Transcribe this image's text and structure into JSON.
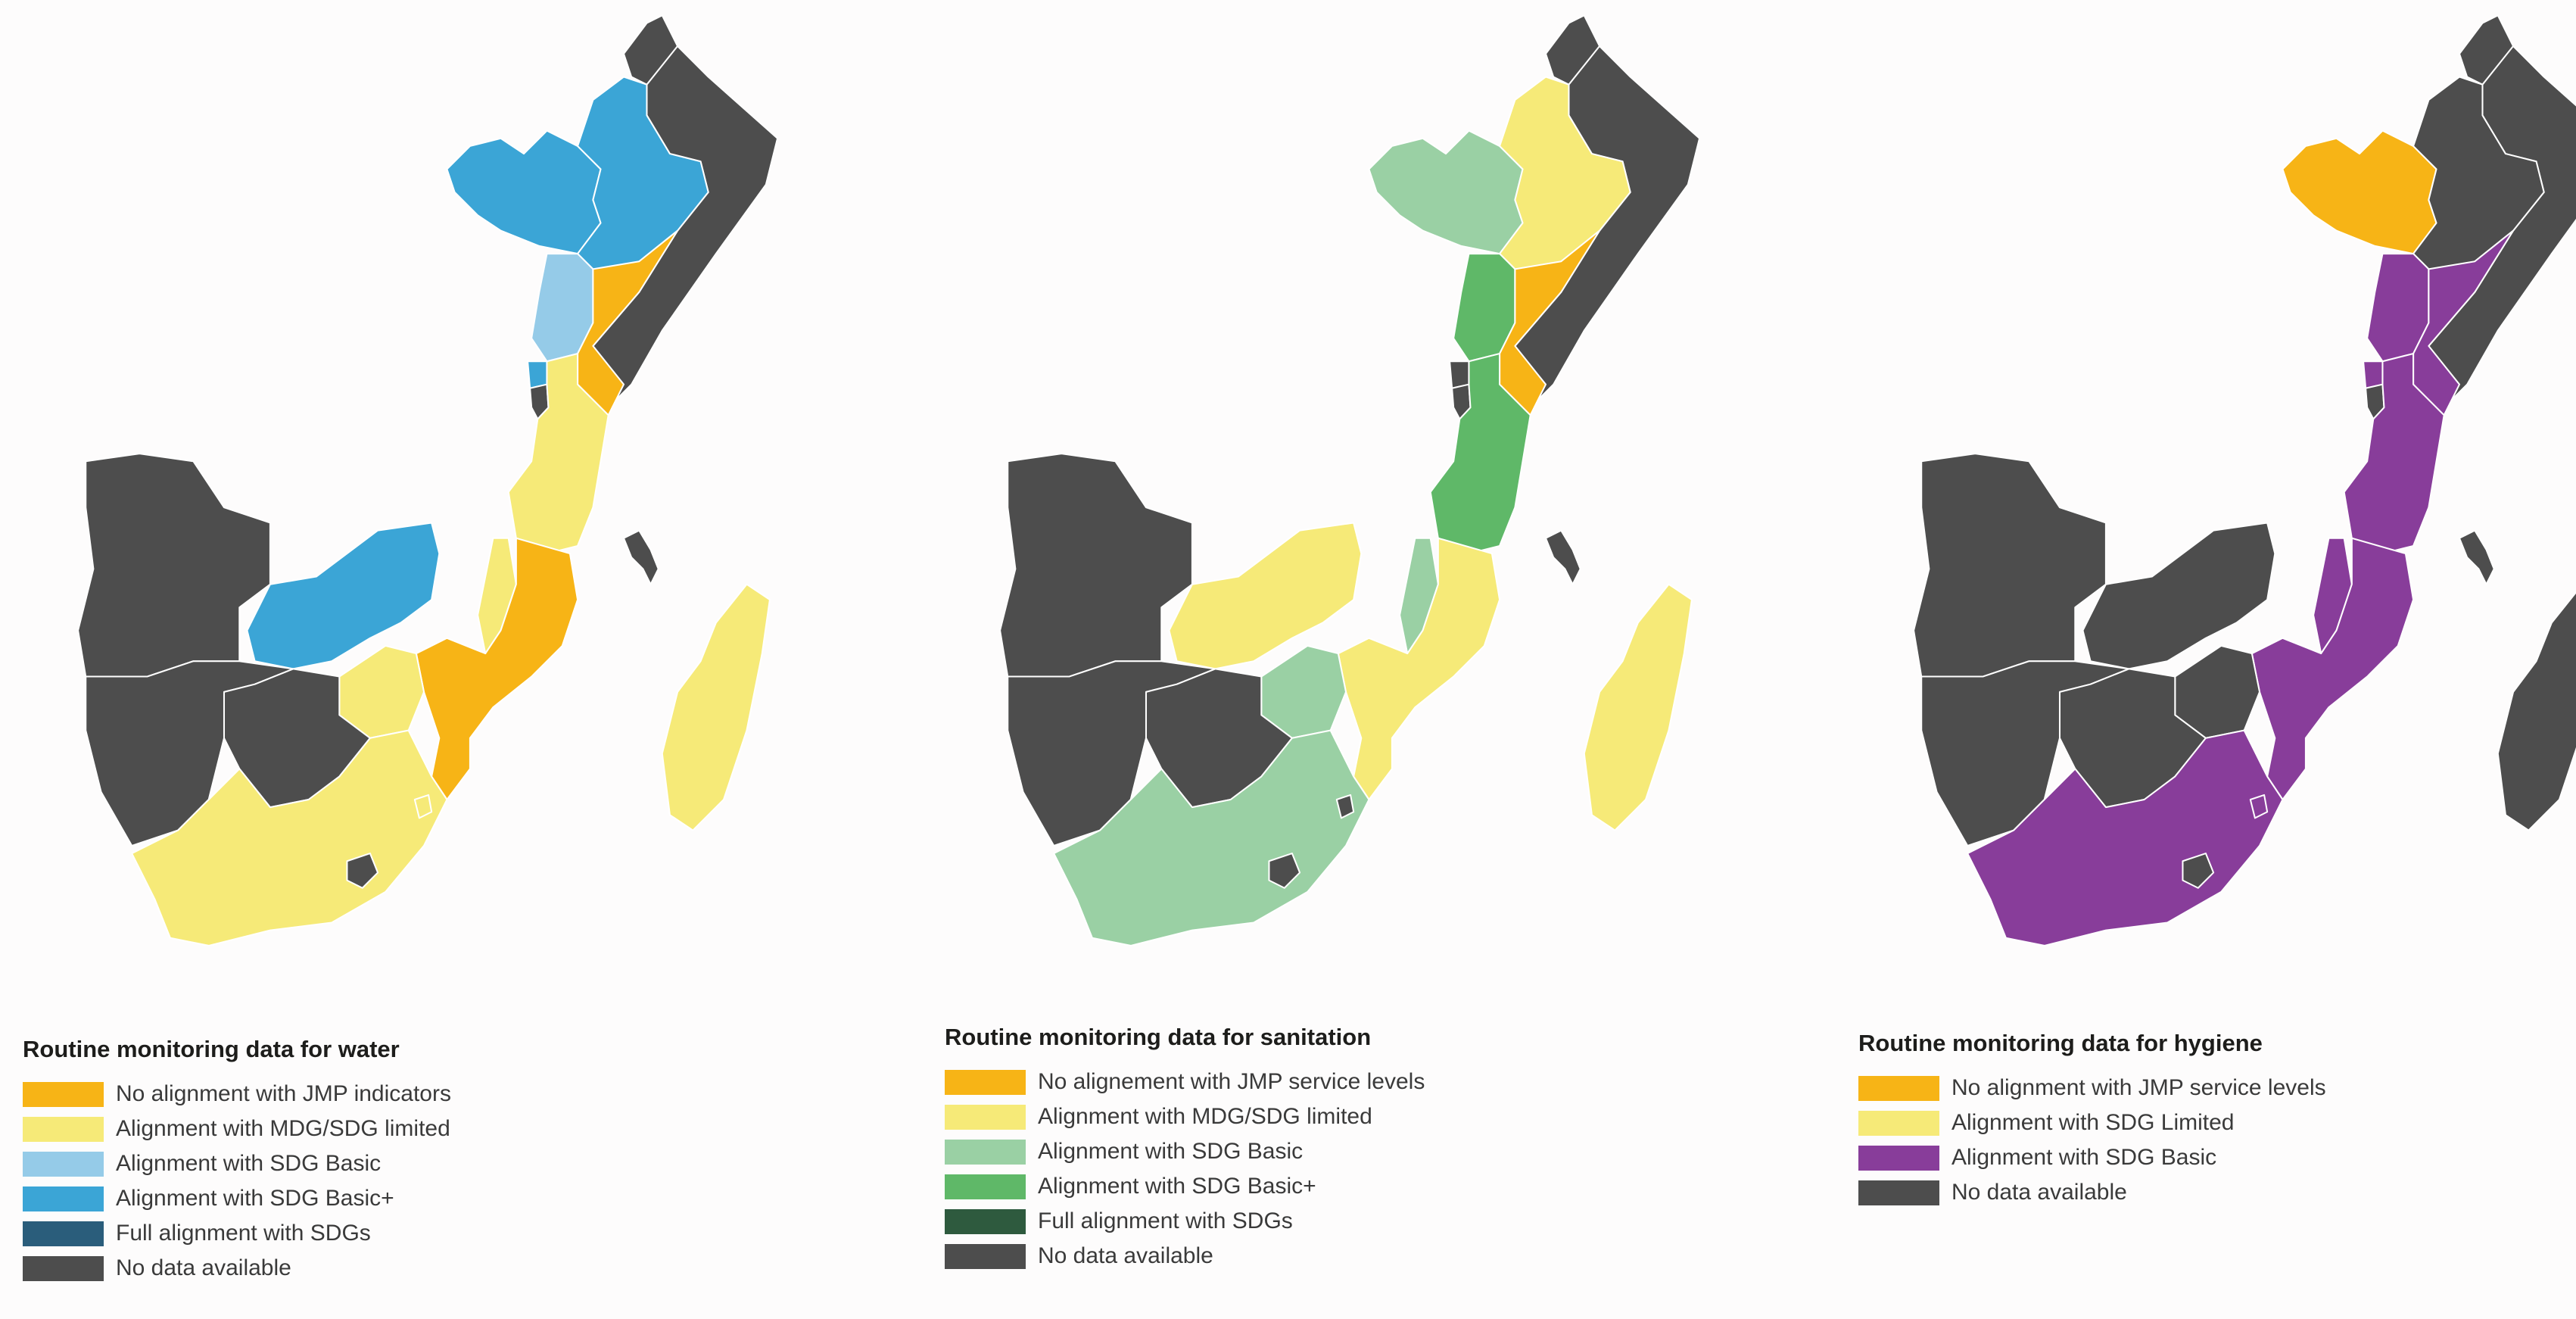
{
  "colors": {
    "no_alignment": "#f7b416",
    "mdg_sdg_limited": "#f6ea78",
    "sdg_basic_light_blue": "#95cbe8",
    "sdg_basic_plus_blue": "#3ba5d6",
    "full_alignment_blue": "#2a5d7b",
    "sdg_basic_light_green": "#9ad0a4",
    "sdg_basic_plus_green": "#5fb868",
    "full_alignment_green": "#2e5a3e",
    "sdg_basic_purple": "#883d9a",
    "no_data": "#4d4d4d",
    "border": "#ffffff"
  },
  "panels": [
    {
      "id": "water",
      "legend_title": "Routine monitoring data for water",
      "legend_items": [
        {
          "label": "No alignment with JMP indicators",
          "color": "#f7b416"
        },
        {
          "label": "Alignment with MDG/SDG limited",
          "color": "#f6ea78"
        },
        {
          "label": "Alignment with SDG Basic",
          "color": "#95cbe8"
        },
        {
          "label": "Alignment with SDG Basic+",
          "color": "#3ba5d6"
        },
        {
          "label": "Full alignment with SDGs",
          "color": "#2a5d7b"
        },
        {
          "label": "No data available",
          "color": "#4d4d4d"
        }
      ],
      "country_colors": {
        "eritrea": "#4d4d4d",
        "somalia": "#4d4d4d",
        "sudan_south": "#3ba5d6",
        "ethiopia": "#3ba5d6",
        "uganda": "#95cbe8",
        "rwanda": "#3ba5d6",
        "burundi": "#4d4d4d",
        "kenya": "#f7b416",
        "tanzania": "#f6ea78",
        "angola": "#4d4d4d",
        "zambia": "#3ba5d6",
        "malawi": "#f6ea78",
        "mozambique": "#f7b416",
        "zimbabwe": "#f6ea78",
        "namibia": "#4d4d4d",
        "botswana": "#4d4d4d",
        "south_africa": "#f6ea78",
        "lesotho": "#4d4d4d",
        "swaziland": "#f6ea78",
        "madagascar": "#f6ea78",
        "comoros": "#4d4d4d"
      }
    },
    {
      "id": "sanitation",
      "legend_title": "Routine monitoring data for sanitation",
      "legend_items": [
        {
          "label": "No alignement with JMP service levels",
          "color": "#f7b416"
        },
        {
          "label": "Alignment with MDG/SDG limited",
          "color": "#f6ea78"
        },
        {
          "label": "Alignment with SDG Basic",
          "color": "#9ad0a4"
        },
        {
          "label": "Alignment with SDG Basic+",
          "color": "#5fb868"
        },
        {
          "label": "Full alignment with SDGs",
          "color": "#2e5a3e"
        },
        {
          "label": "No data available",
          "color": "#4d4d4d"
        }
      ],
      "country_colors": {
        "eritrea": "#4d4d4d",
        "somalia": "#4d4d4d",
        "sudan_south": "#9ad0a4",
        "ethiopia": "#f6ea78",
        "uganda": "#5fb868",
        "rwanda": "#4d4d4d",
        "burundi": "#4d4d4d",
        "kenya": "#f7b416",
        "tanzania": "#5fb868",
        "angola": "#4d4d4d",
        "zambia": "#f6ea78",
        "malawi": "#9ad0a4",
        "mozambique": "#f6ea78",
        "zimbabwe": "#9ad0a4",
        "namibia": "#4d4d4d",
        "botswana": "#4d4d4d",
        "south_africa": "#9ad0a4",
        "lesotho": "#4d4d4d",
        "swaziland": "#4d4d4d",
        "madagascar": "#f6ea78",
        "comoros": "#4d4d4d"
      }
    },
    {
      "id": "hygiene",
      "legend_title": "Routine monitoring data for hygiene",
      "legend_items": [
        {
          "label": "No alignment with JMP service levels",
          "color": "#f7b416"
        },
        {
          "label": "Alignment with SDG Limited",
          "color": "#f6ea78"
        },
        {
          "label": "Alignment with SDG Basic",
          "color": "#883d9a"
        },
        {
          "label": "No data available",
          "color": "#4d4d4d"
        }
      ],
      "country_colors": {
        "eritrea": "#4d4d4d",
        "somalia": "#4d4d4d",
        "sudan_south": "#f7b416",
        "ethiopia": "#4d4d4d",
        "uganda": "#883d9a",
        "rwanda": "#883d9a",
        "burundi": "#4d4d4d",
        "kenya": "#883d9a",
        "tanzania": "#883d9a",
        "angola": "#4d4d4d",
        "zambia": "#4d4d4d",
        "malawi": "#883d9a",
        "mozambique": "#883d9a",
        "zimbabwe": "#4d4d4d",
        "namibia": "#4d4d4d",
        "botswana": "#4d4d4d",
        "south_africa": "#883d9a",
        "lesotho": "#4d4d4d",
        "swaziland": "#883d9a",
        "madagascar": "#4d4d4d",
        "comoros": "#4d4d4d"
      }
    }
  ]
}
